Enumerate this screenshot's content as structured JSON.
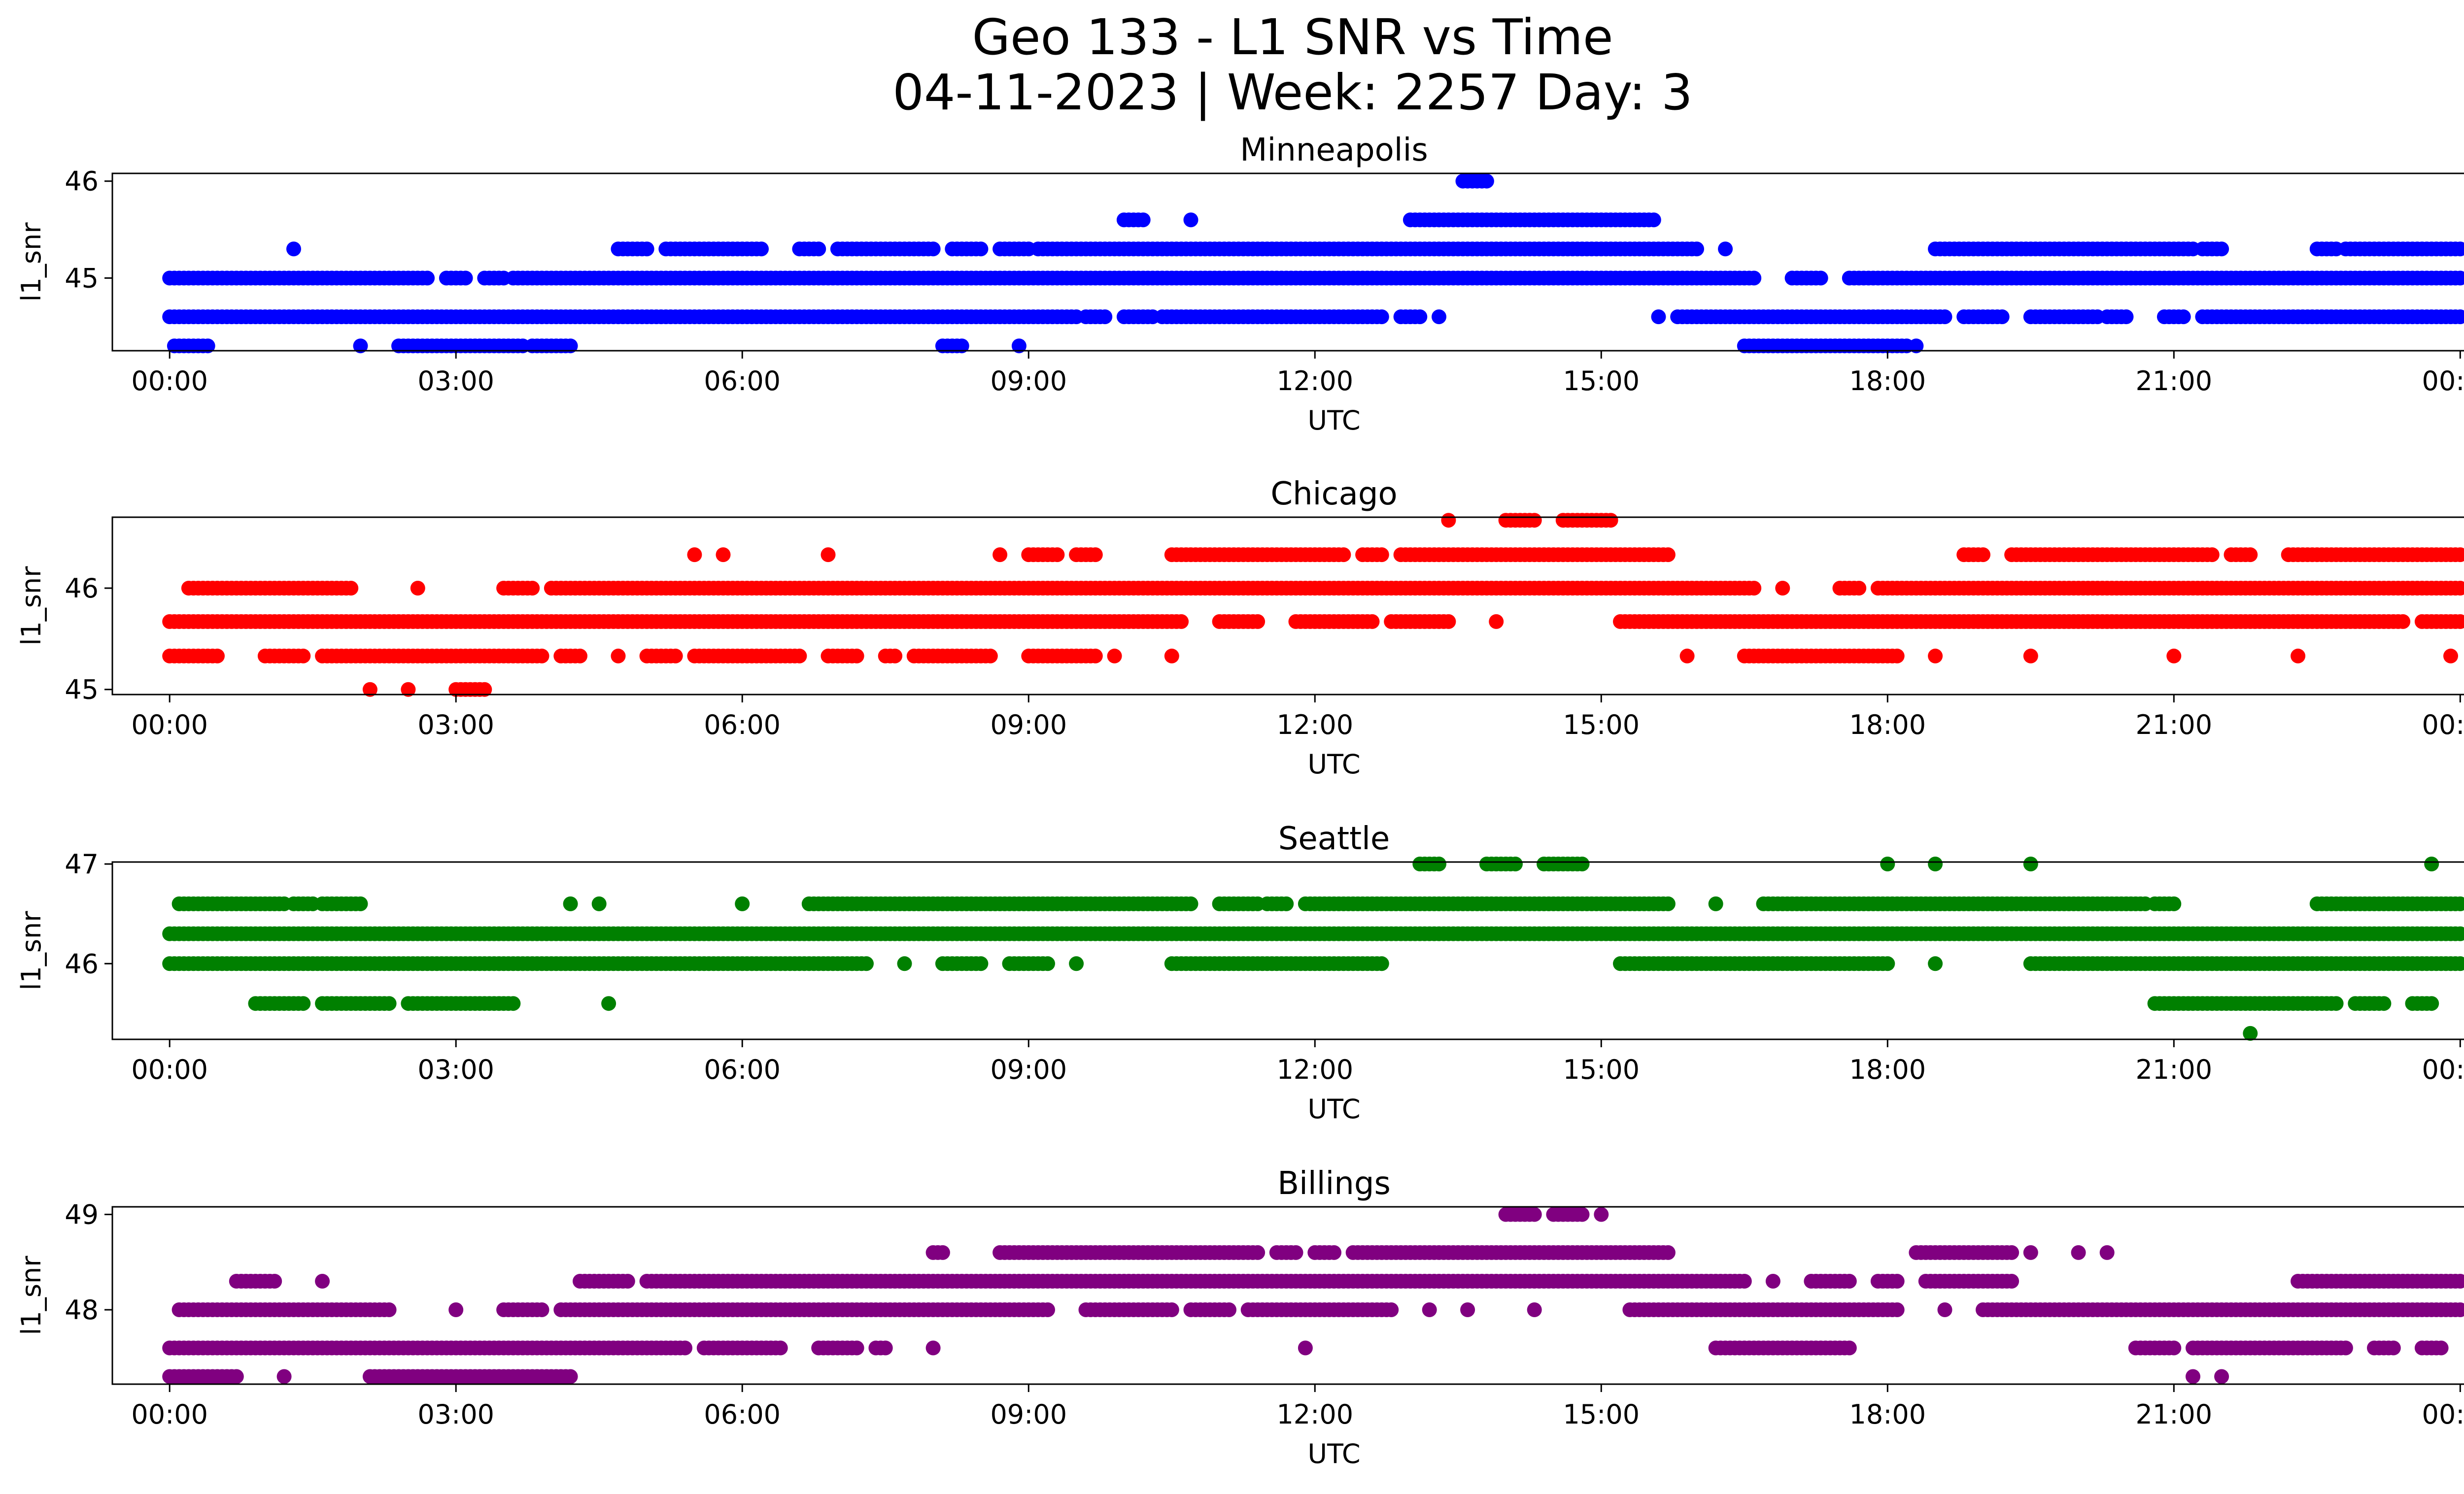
{
  "figure": {
    "title_line1": "Geo 133 - L1 SNR vs Time",
    "title_line2": "04-11-2023 | Week: 2257 Day: 3"
  },
  "chart_data": [
    {
      "type": "scatter",
      "title": "Minneapolis",
      "xlabel": "UTC",
      "ylabel": "l1_snr",
      "color": "#0000ff",
      "xlim_hours": [
        -0.6,
        25.0
      ],
      "ylim": [
        44.25,
        46.08
      ],
      "x_ticks": [
        "00:00",
        "03:00",
        "06:00",
        "09:00",
        "12:00",
        "15:00",
        "18:00",
        "21:00",
        "00:00"
      ],
      "y_ticks": [
        45,
        46
      ],
      "levels": [
        {
          "y": 46.0,
          "segments": [
            [
              13.55,
              13.8
            ]
          ]
        },
        {
          "y": 45.6,
          "segments": [
            [
              10.0,
              10.2
            ],
            [
              10.7,
              10.7
            ],
            [
              13.0,
              15.55
            ]
          ]
        },
        {
          "y": 45.3,
          "segments": [
            [
              1.3,
              1.3
            ],
            [
              4.7,
              5.0
            ],
            [
              5.2,
              6.2
            ],
            [
              6.6,
              6.8
            ],
            [
              7.0,
              8.0
            ],
            [
              8.2,
              8.5
            ],
            [
              8.7,
              9.0
            ],
            [
              9.1,
              16.0
            ],
            [
              16.3,
              16.3
            ],
            [
              18.5,
              21.2
            ],
            [
              21.3,
              21.5
            ],
            [
              22.5,
              22.7
            ],
            [
              22.8,
              24.0
            ]
          ]
        },
        {
          "y": 45.0,
          "segments": [
            [
              0.0,
              2.7
            ],
            [
              2.9,
              3.1
            ],
            [
              3.3,
              3.5
            ],
            [
              3.6,
              16.6
            ],
            [
              17.0,
              17.3
            ],
            [
              17.6,
              24.0
            ]
          ]
        },
        {
          "y": 44.6,
          "segments": [
            [
              0.0,
              9.5
            ],
            [
              9.6,
              9.8
            ],
            [
              10.0,
              10.3
            ],
            [
              10.4,
              12.7
            ],
            [
              12.9,
              13.1
            ],
            [
              13.3,
              13.3
            ],
            [
              15.6,
              15.6
            ],
            [
              15.8,
              18.6
            ],
            [
              18.8,
              19.2
            ],
            [
              19.5,
              20.2
            ],
            [
              20.3,
              20.5
            ],
            [
              20.9,
              21.1
            ],
            [
              21.3,
              24.0
            ]
          ]
        },
        {
          "y": 44.3,
          "segments": [
            [
              0.05,
              0.4
            ],
            [
              2.0,
              2.0
            ],
            [
              2.4,
              3.7
            ],
            [
              3.8,
              4.2
            ],
            [
              8.1,
              8.3
            ],
            [
              8.9,
              8.9
            ],
            [
              16.5,
              18.2
            ],
            [
              18.3,
              18.3
            ]
          ]
        }
      ]
    },
    {
      "type": "scatter",
      "title": "Chicago",
      "xlabel": "UTC",
      "ylabel": "l1_snr",
      "color": "#ff0000",
      "xlim_hours": [
        -0.6,
        25.0
      ],
      "ylim": [
        44.95,
        46.7
      ],
      "x_ticks": [
        "00:00",
        "03:00",
        "06:00",
        "09:00",
        "12:00",
        "15:00",
        "18:00",
        "21:00",
        "00:00"
      ],
      "y_ticks": [
        45,
        46
      ],
      "levels": [
        {
          "y": 46.67,
          "segments": [
            [
              13.4,
              13.4
            ],
            [
              14.0,
              14.3
            ],
            [
              14.6,
              15.1
            ]
          ]
        },
        {
          "y": 46.33,
          "segments": [
            [
              5.5,
              5.5
            ],
            [
              5.8,
              5.8
            ],
            [
              6.9,
              6.9
            ],
            [
              8.7,
              8.7
            ],
            [
              9.0,
              9.3
            ],
            [
              9.5,
              9.7
            ],
            [
              10.5,
              12.3
            ],
            [
              12.5,
              12.7
            ],
            [
              12.9,
              15.7
            ],
            [
              18.8,
              19.0
            ],
            [
              19.3,
              21.4
            ],
            [
              21.6,
              21.8
            ],
            [
              22.2,
              24.0
            ]
          ]
        },
        {
          "y": 46.0,
          "segments": [
            [
              0.2,
              1.9
            ],
            [
              2.6,
              2.6
            ],
            [
              3.5,
              3.8
            ],
            [
              4.0,
              16.6
            ],
            [
              16.9,
              16.9
            ],
            [
              17.5,
              17.7
            ],
            [
              17.9,
              24.0
            ]
          ]
        },
        {
          "y": 45.67,
          "segments": [
            [
              0.0,
              10.6
            ],
            [
              11.0,
              11.4
            ],
            [
              11.8,
              12.6
            ],
            [
              12.8,
              13.4
            ],
            [
              13.9,
              13.9
            ],
            [
              15.2,
              23.4
            ],
            [
              23.6,
              24.0
            ]
          ]
        },
        {
          "y": 45.33,
          "segments": [
            [
              0.0,
              0.5
            ],
            [
              1.0,
              1.4
            ],
            [
              1.6,
              3.9
            ],
            [
              4.1,
              4.3
            ],
            [
              4.7,
              4.7
            ],
            [
              5.0,
              5.3
            ],
            [
              5.5,
              6.6
            ],
            [
              6.9,
              7.2
            ],
            [
              7.5,
              7.6
            ],
            [
              7.8,
              8.6
            ],
            [
              9.0,
              9.7
            ],
            [
              9.9,
              9.9
            ],
            [
              10.5,
              10.5
            ],
            [
              15.9,
              15.9
            ],
            [
              16.5,
              18.1
            ],
            [
              18.5,
              18.5
            ],
            [
              19.5,
              19.5
            ],
            [
              21.0,
              21.0
            ],
            [
              22.3,
              22.3
            ],
            [
              23.9,
              23.9
            ]
          ]
        },
        {
          "y": 45.0,
          "segments": [
            [
              2.1,
              2.1
            ],
            [
              2.5,
              2.5
            ],
            [
              3.0,
              3.3
            ]
          ]
        }
      ]
    },
    {
      "type": "scatter",
      "title": "Seattle",
      "xlabel": "UTC",
      "ylabel": "l1_snr",
      "color": "#008000",
      "xlim_hours": [
        -0.6,
        25.0
      ],
      "ylim": [
        45.24,
        47.02
      ],
      "x_ticks": [
        "00:00",
        "03:00",
        "06:00",
        "09:00",
        "12:00",
        "15:00",
        "18:00",
        "21:00",
        "00:00"
      ],
      "y_ticks": [
        46,
        47
      ],
      "levels": [
        {
          "y": 47.0,
          "segments": [
            [
              13.1,
              13.3
            ],
            [
              13.8,
              14.1
            ],
            [
              14.4,
              14.8
            ],
            [
              18.0,
              18.0
            ],
            [
              18.5,
              18.5
            ],
            [
              19.5,
              19.5
            ],
            [
              23.7,
              23.7
            ]
          ]
        },
        {
          "y": 46.6,
          "segments": [
            [
              0.1,
              1.2
            ],
            [
              1.3,
              1.5
            ],
            [
              1.6,
              2.0
            ],
            [
              4.2,
              4.2
            ],
            [
              4.5,
              4.5
            ],
            [
              6.0,
              6.0
            ],
            [
              6.7,
              10.7
            ],
            [
              11.0,
              11.4
            ],
            [
              11.5,
              11.7
            ],
            [
              11.9,
              15.7
            ],
            [
              16.2,
              16.2
            ],
            [
              16.7,
              20.7
            ],
            [
              20.8,
              21.0
            ],
            [
              22.5,
              24.0
            ]
          ]
        },
        {
          "y": 46.3,
          "segments": [
            [
              0.0,
              24.0
            ]
          ]
        },
        {
          "y": 46.0,
          "segments": [
            [
              0.0,
              7.3
            ],
            [
              7.7,
              7.7
            ],
            [
              8.1,
              8.5
            ],
            [
              8.8,
              9.2
            ],
            [
              9.5,
              9.5
            ],
            [
              10.5,
              12.7
            ],
            [
              15.2,
              18.0
            ],
            [
              18.5,
              18.5
            ],
            [
              19.5,
              24.0
            ]
          ]
        },
        {
          "y": 45.6,
          "segments": [
            [
              0.9,
              1.4
            ],
            [
              1.6,
              2.3
            ],
            [
              2.5,
              3.6
            ],
            [
              4.6,
              4.6
            ],
            [
              20.8,
              22.7
            ],
            [
              22.9,
              23.2
            ],
            [
              23.5,
              23.7
            ]
          ]
        },
        {
          "y": 45.3,
          "segments": [
            [
              21.8,
              21.8
            ]
          ]
        }
      ]
    },
    {
      "type": "scatter",
      "title": "Billings",
      "xlabel": "UTC",
      "ylabel": "l1_snr",
      "color": "#800080",
      "xlim_hours": [
        -0.6,
        25.0
      ],
      "ylim": [
        47.22,
        49.08
      ],
      "x_ticks": [
        "00:00",
        "03:00",
        "06:00",
        "09:00",
        "12:00",
        "15:00",
        "18:00",
        "21:00",
        "00:00"
      ],
      "y_ticks": [
        48,
        49
      ],
      "levels": [
        {
          "y": 49.0,
          "segments": [
            [
              14.0,
              14.3
            ],
            [
              14.5,
              14.8
            ],
            [
              15.0,
              15.0
            ]
          ]
        },
        {
          "y": 48.6,
          "segments": [
            [
              8.0,
              8.1
            ],
            [
              8.7,
              11.4
            ],
            [
              11.6,
              11.8
            ],
            [
              12.0,
              12.2
            ],
            [
              12.4,
              15.7
            ],
            [
              18.3,
              19.3
            ],
            [
              19.5,
              19.5
            ],
            [
              20.0,
              20.0
            ],
            [
              20.3,
              20.3
            ]
          ]
        },
        {
          "y": 48.3,
          "segments": [
            [
              0.7,
              1.1
            ],
            [
              1.6,
              1.6
            ],
            [
              4.3,
              4.8
            ],
            [
              5.0,
              16.5
            ],
            [
              16.8,
              16.8
            ],
            [
              17.2,
              17.6
            ],
            [
              17.9,
              18.1
            ],
            [
              18.4,
              19.3
            ],
            [
              22.3,
              24.0
            ]
          ]
        },
        {
          "y": 48.0,
          "segments": [
            [
              0.1,
              2.3
            ],
            [
              3.0,
              3.0
            ],
            [
              3.5,
              3.9
            ],
            [
              4.1,
              9.2
            ],
            [
              9.6,
              10.5
            ],
            [
              10.7,
              11.1
            ],
            [
              11.3,
              12.8
            ],
            [
              13.2,
              13.2
            ],
            [
              13.6,
              13.6
            ],
            [
              14.3,
              14.3
            ],
            [
              15.3,
              18.1
            ],
            [
              18.6,
              18.6
            ],
            [
              19.0,
              24.0
            ]
          ]
        },
        {
          "y": 47.6,
          "segments": [
            [
              0.0,
              5.4
            ],
            [
              5.6,
              6.4
            ],
            [
              6.8,
              7.2
            ],
            [
              7.4,
              7.5
            ],
            [
              8.0,
              8.0
            ],
            [
              11.9,
              11.9
            ],
            [
              16.2,
              17.6
            ],
            [
              20.6,
              21.0
            ],
            [
              21.2,
              22.8
            ],
            [
              23.1,
              23.3
            ],
            [
              23.6,
              23.8
            ]
          ]
        },
        {
          "y": 47.3,
          "segments": [
            [
              0.0,
              0.7
            ],
            [
              1.2,
              1.2
            ],
            [
              2.1,
              4.2
            ],
            [
              21.2,
              21.2
            ],
            [
              21.5,
              21.5
            ]
          ]
        }
      ]
    }
  ]
}
